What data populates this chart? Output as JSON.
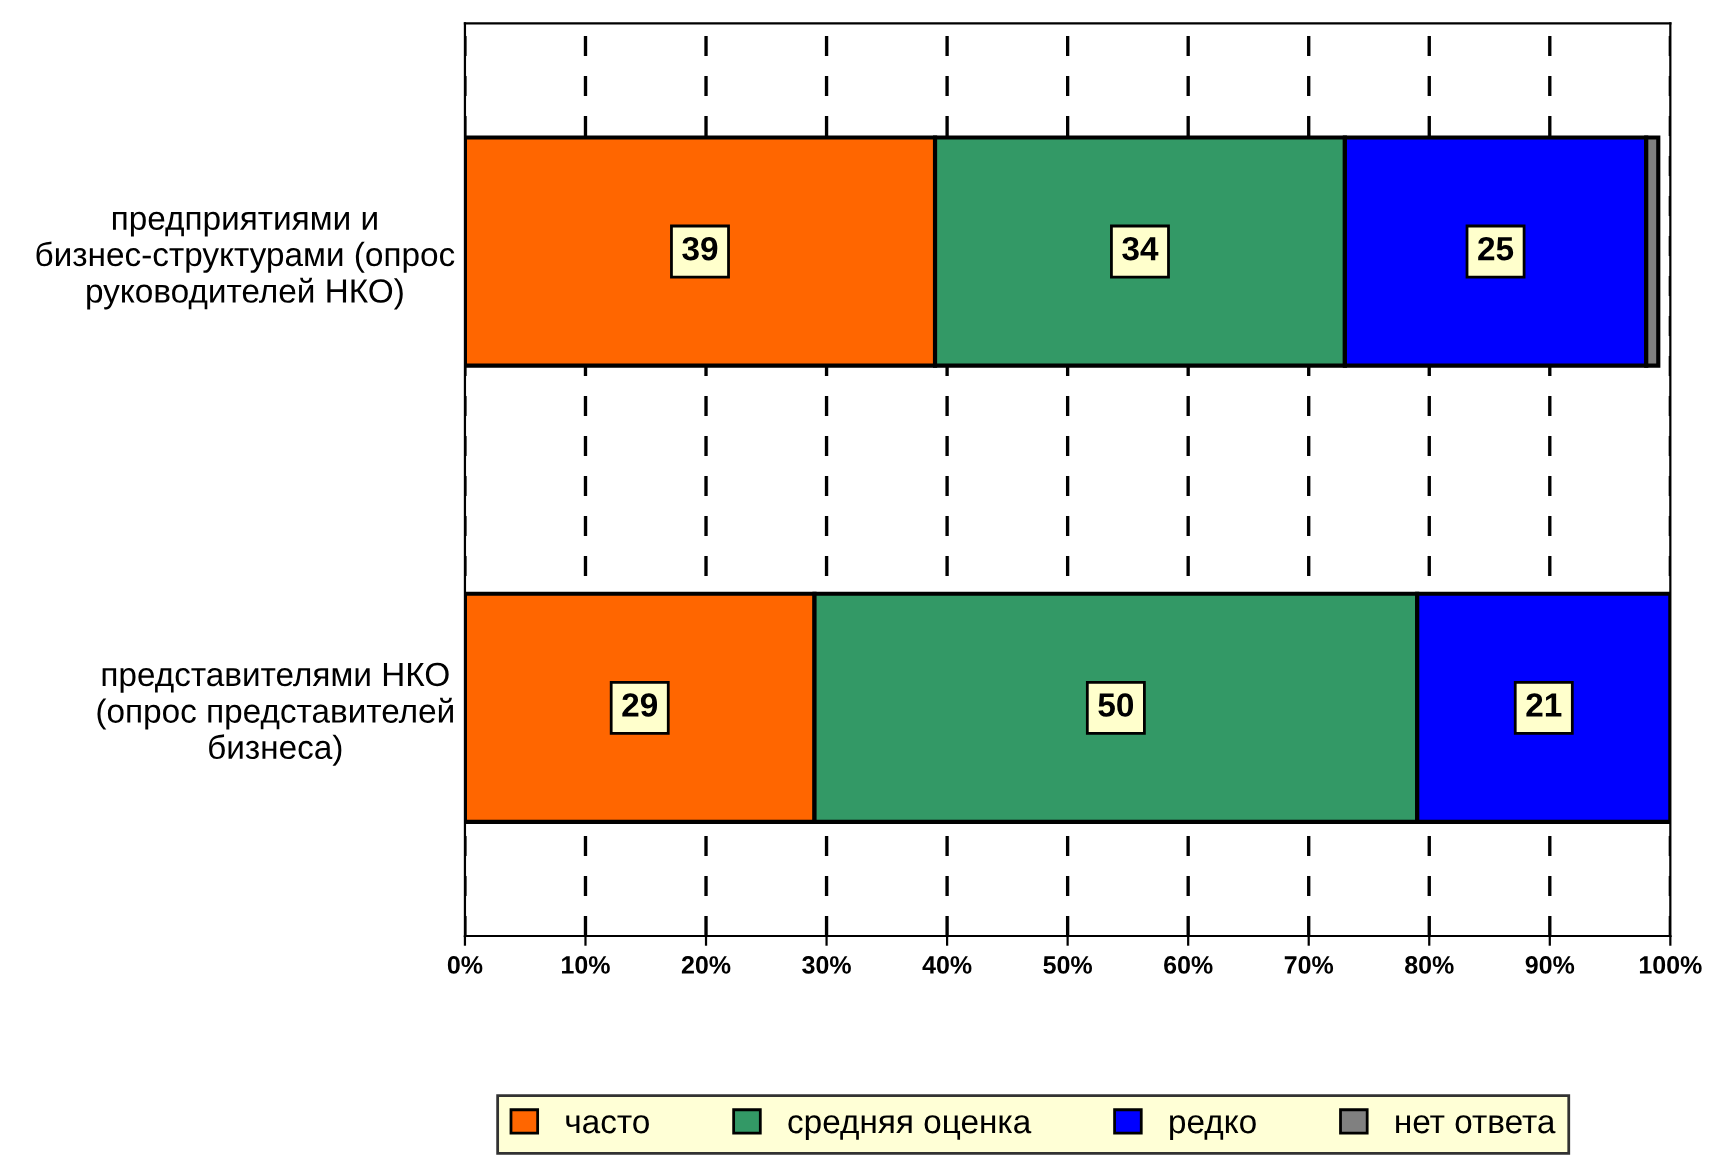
{
  "chart_data": {
    "type": "bar",
    "orientation": "horizontal",
    "stacked": true,
    "categories": [
      "предприятиями и бизнес-структурами (опрос руководителей НКО)",
      "представителями НКО (опрос представителей бизнеса)"
    ],
    "series": [
      {
        "name": "часто",
        "color": "#ff6600",
        "values": [
          39,
          29
        ],
        "value_labels": [
          "39",
          "29"
        ]
      },
      {
        "name": "средняя оценка",
        "color": "#339966",
        "values": [
          34,
          50
        ],
        "value_labels": [
          "34",
          "50"
        ]
      },
      {
        "name": "редко",
        "color": "#0000ff",
        "values": [
          25,
          21
        ],
        "value_labels": [
          "25",
          "21"
        ]
      },
      {
        "name": "нет ответа",
        "color": "#808080",
        "values": [
          1,
          null
        ],
        "value_labels": [
          null,
          null
        ]
      }
    ],
    "xlim": [
      0,
      100
    ],
    "xticks": [
      {
        "value": 0,
        "label": "0%"
      },
      {
        "value": 10,
        "label": "10%"
      },
      {
        "value": 20,
        "label": "20%"
      },
      {
        "value": 30,
        "label": "30%"
      },
      {
        "value": 40,
        "label": "40%"
      },
      {
        "value": 50,
        "label": "50%"
      },
      {
        "value": 60,
        "label": "60%"
      },
      {
        "value": 70,
        "label": "70%"
      },
      {
        "value": 80,
        "label": "80%"
      },
      {
        "value": 90,
        "label": "90%"
      },
      {
        "value": 100,
        "label": "100%"
      }
    ],
    "grid": "x",
    "legend": "bottom"
  }
}
